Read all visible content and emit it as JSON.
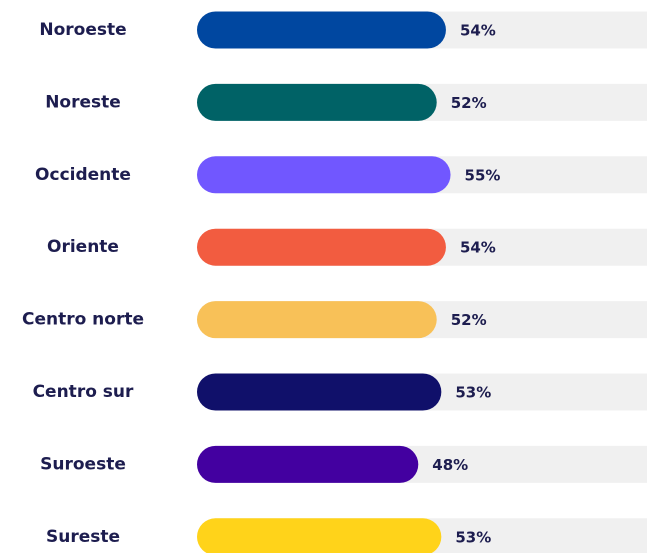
{
  "chart_data": {
    "type": "bar",
    "orientation": "horizontal",
    "categories": [
      "Noroeste",
      "Noreste",
      "Occidente",
      "Oriente",
      "Centro norte",
      "Centro sur",
      "Suroeste",
      "Sureste"
    ],
    "values": [
      54,
      52,
      55,
      54,
      52,
      53,
      48,
      53
    ],
    "value_labels": [
      "54%",
      "52%",
      "55%",
      "54%",
      "52%",
      "53%",
      "48%",
      "53%"
    ],
    "colors": [
      "#0047a0",
      "#006266",
      "#7157ff",
      "#f25c40",
      "#f8c158",
      "#10106a",
      "#4300a0",
      "#ffd31a"
    ]
  }
}
